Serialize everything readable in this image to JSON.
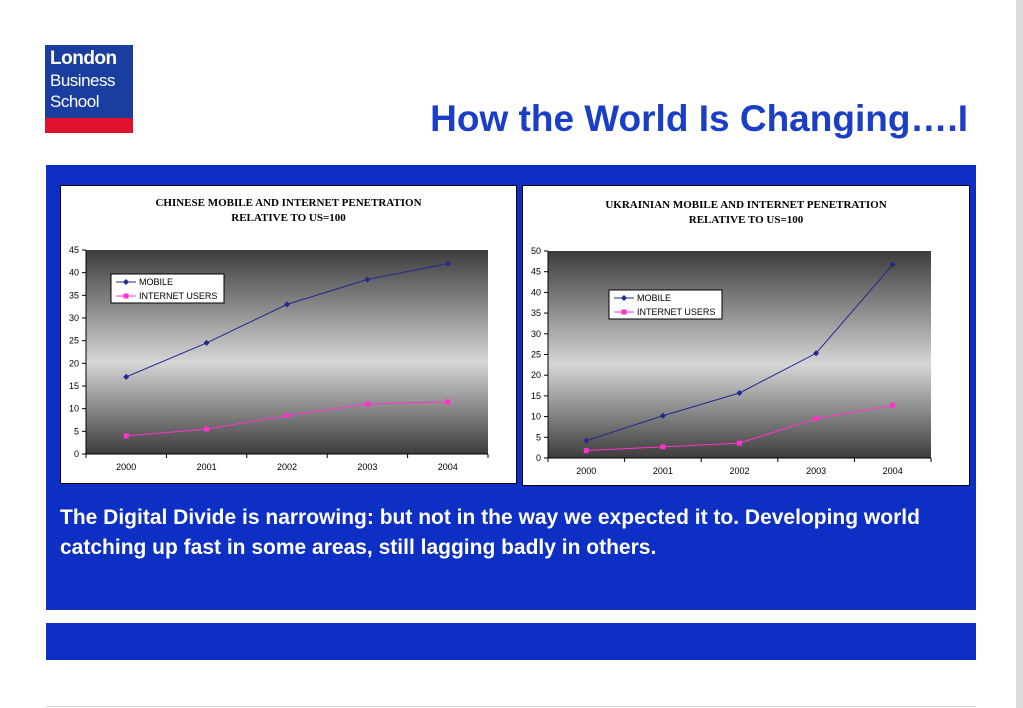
{
  "logo": {
    "line1": "London",
    "line2": "Business",
    "line3": "School"
  },
  "title": "How the World Is Changing….I",
  "caption": "The Digital Divide is narrowing: but not in the way we expected it to. Developing world catching up fast in some areas, still lagging badly in others.",
  "colors": {
    "panel": "#0d2fc4",
    "title": "#1a3ec8",
    "mobile": "#1f2a8c",
    "internet": "#ff33cc",
    "logo_red": "#e0112b"
  },
  "chart_data": [
    {
      "type": "line",
      "title_line1": "CHINESE MOBILE AND INTERNET PENETRATION",
      "title_line2": "RELATIVE TO US=100",
      "x": [
        "2000",
        "2001",
        "2002",
        "2003",
        "2004"
      ],
      "ylim": [
        0,
        45
      ],
      "yticks": [
        "0",
        "5",
        "10",
        "15",
        "20",
        "25",
        "30",
        "35",
        "40",
        "45"
      ],
      "legend": "upper-left",
      "series": [
        {
          "name": "MOBILE",
          "values": [
            17,
            24.5,
            33,
            38.5,
            42
          ]
        },
        {
          "name": "INTERNET USERS",
          "values": [
            4,
            5.5,
            8.5,
            11,
            11.5
          ]
        }
      ]
    },
    {
      "type": "line",
      "title_line1": "UKRAINIAN MOBILE AND INTERNET PENETRATION",
      "title_line2": "RELATIVE TO US=100",
      "x": [
        "2000",
        "2001",
        "2002",
        "2003",
        "2004"
      ],
      "ylim": [
        0,
        50
      ],
      "yticks": [
        "0",
        "5",
        "10",
        "15",
        "20",
        "25",
        "30",
        "35",
        "40",
        "45",
        "50"
      ],
      "legend": "upper-left",
      "series": [
        {
          "name": "MOBILE",
          "values": [
            4.2,
            10.2,
            15.7,
            25.3,
            46.7
          ]
        },
        {
          "name": "INTERNET USERS",
          "values": [
            1.8,
            2.7,
            3.6,
            9.5,
            12.7
          ]
        }
      ]
    }
  ]
}
